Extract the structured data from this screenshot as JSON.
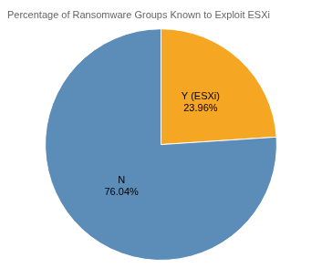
{
  "chart_data": {
    "type": "pie",
    "title": "Percentage of Ransomware Groups Known to Exploit ESXi",
    "categories": [
      "Y (ESXi)",
      "N"
    ],
    "values": [
      23.96,
      76.04
    ],
    "value_labels": [
      "23.96%",
      "76.04%"
    ],
    "colors": [
      "#f5a623",
      "#5b8db8"
    ],
    "data_labels": true,
    "legend": false
  }
}
